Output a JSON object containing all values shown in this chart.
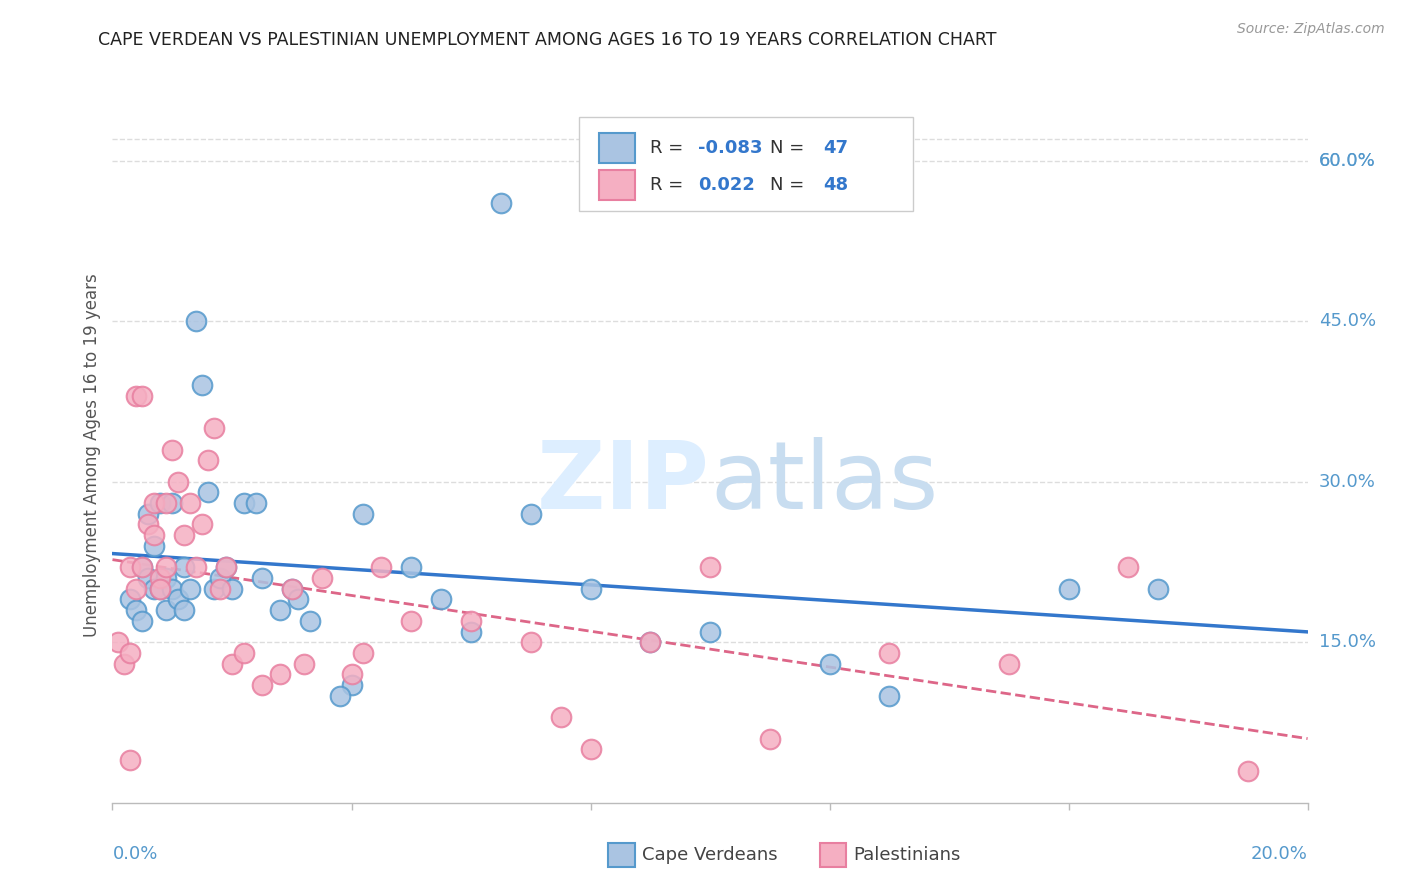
{
  "title": "CAPE VERDEAN VS PALESTINIAN UNEMPLOYMENT AMONG AGES 16 TO 19 YEARS CORRELATION CHART",
  "source": "Source: ZipAtlas.com",
  "ylabel": "Unemployment Among Ages 16 to 19 years",
  "xlim": [
    0.0,
    0.2
  ],
  "ylim": [
    0.0,
    0.65
  ],
  "y_ticks": [
    0.15,
    0.3,
    0.45,
    0.6
  ],
  "y_tick_labels": [
    "15.0%",
    "30.0%",
    "45.0%",
    "60.0%"
  ],
  "cape_verdean_R": -0.083,
  "cape_verdean_N": 47,
  "palestinian_R": 0.022,
  "palestinian_N": 48,
  "cv_color": "#aac4e2",
  "pal_color": "#f5afc2",
  "cv_edge_color": "#5599cc",
  "pal_edge_color": "#e87fa0",
  "cv_line_color": "#3377cc",
  "pal_line_color": "#dd6688",
  "background_color": "#ffffff",
  "grid_color": "#dddddd",
  "title_color": "#222222",
  "axis_label_color": "#5599cc",
  "watermark_color": "#ddeeff",
  "cape_verdeans_x": [
    0.003,
    0.004,
    0.005,
    0.005,
    0.006,
    0.006,
    0.007,
    0.007,
    0.008,
    0.008,
    0.009,
    0.009,
    0.01,
    0.01,
    0.011,
    0.012,
    0.012,
    0.013,
    0.014,
    0.015,
    0.016,
    0.017,
    0.018,
    0.019,
    0.02,
    0.022,
    0.024,
    0.028,
    0.03,
    0.031,
    0.033,
    0.04,
    0.042,
    0.05,
    0.055,
    0.06,
    0.065,
    0.07,
    0.08,
    0.09,
    0.1,
    0.12,
    0.13,
    0.16,
    0.175,
    0.038,
    0.025
  ],
  "cape_verdeans_y": [
    0.19,
    0.18,
    0.22,
    0.17,
    0.27,
    0.21,
    0.2,
    0.24,
    0.28,
    0.2,
    0.18,
    0.21,
    0.2,
    0.28,
    0.19,
    0.18,
    0.22,
    0.2,
    0.45,
    0.39,
    0.29,
    0.2,
    0.21,
    0.22,
    0.2,
    0.28,
    0.28,
    0.18,
    0.2,
    0.19,
    0.17,
    0.11,
    0.27,
    0.22,
    0.19,
    0.16,
    0.56,
    0.27,
    0.2,
    0.15,
    0.16,
    0.13,
    0.1,
    0.2,
    0.2,
    0.1,
    0.21
  ],
  "palestinians_x": [
    0.001,
    0.002,
    0.003,
    0.003,
    0.004,
    0.004,
    0.005,
    0.005,
    0.006,
    0.007,
    0.007,
    0.008,
    0.008,
    0.009,
    0.009,
    0.01,
    0.011,
    0.012,
    0.013,
    0.014,
    0.015,
    0.016,
    0.017,
    0.018,
    0.019,
    0.02,
    0.022,
    0.025,
    0.028,
    0.03,
    0.032,
    0.035,
    0.04,
    0.042,
    0.045,
    0.05,
    0.06,
    0.07,
    0.075,
    0.08,
    0.09,
    0.1,
    0.11,
    0.13,
    0.15,
    0.17,
    0.19,
    0.003
  ],
  "palestinians_y": [
    0.15,
    0.13,
    0.14,
    0.22,
    0.38,
    0.2,
    0.22,
    0.38,
    0.26,
    0.25,
    0.28,
    0.21,
    0.2,
    0.22,
    0.28,
    0.33,
    0.3,
    0.25,
    0.28,
    0.22,
    0.26,
    0.32,
    0.35,
    0.2,
    0.22,
    0.13,
    0.14,
    0.11,
    0.12,
    0.2,
    0.13,
    0.21,
    0.12,
    0.14,
    0.22,
    0.17,
    0.17,
    0.15,
    0.08,
    0.05,
    0.15,
    0.22,
    0.06,
    0.14,
    0.13,
    0.22,
    0.03,
    0.04
  ]
}
